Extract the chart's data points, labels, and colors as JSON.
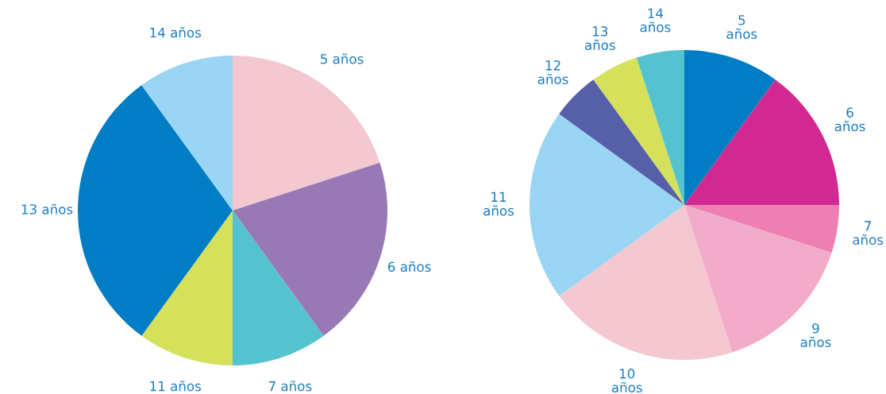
{
  "chart_data": [
    {
      "type": "pie",
      "categories": [
        "5 años",
        "6 años",
        "7 años",
        "11 años",
        "13 años",
        "14 años"
      ],
      "values": [
        20,
        20,
        10,
        10,
        30,
        10
      ],
      "colors": [
        "#f3c8d0",
        "#9878b5",
        "#55c3cf",
        "#d5e05b",
        "#007dc4",
        "#9ad5f3"
      ]
    },
    {
      "type": "pie",
      "categories": [
        "5\naños",
        "6\naños",
        "7\naños",
        "9\naños",
        "10\naños",
        "11\naños",
        "12\naños",
        "13\naños",
        "14\naños"
      ],
      "values": [
        10,
        15,
        5,
        15,
        20,
        20,
        5,
        5,
        5
      ],
      "colors": [
        "#007dc4",
        "#d12991",
        "#ee7fb2",
        "#f2acc9",
        "#f3c8d0",
        "#9ad5f3",
        "#5560a9",
        "#d5e05b",
        "#55c3cf"
      ]
    }
  ]
}
